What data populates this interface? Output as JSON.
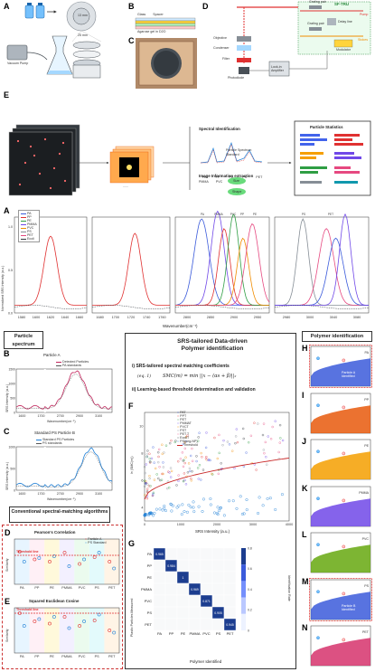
{
  "panelA_top": {
    "label": "A",
    "vacuum_pump": "Vacuum Pump",
    "d13": "13 mm",
    "d25": "25 mm"
  },
  "panelB_top": {
    "label": "B",
    "legend": [
      "Glass",
      "Spacer",
      "Agarose gel in D2O",
      "Nail Polish",
      "Al2O3 membrane"
    ]
  },
  "panelC_top": {
    "label": "C"
  },
  "panelD_top": {
    "label": "D",
    "title": "SF-TRU",
    "labels": [
      "Grating pair",
      "Grating pair",
      "Delay line",
      "Modulator",
      "Objective",
      "Condenser",
      "Filter",
      "Photodiode",
      "Lock-in Amplifier"
    ],
    "pump": "Pump",
    "stokes": "Stokes"
  },
  "panelE_top": {
    "label": "E",
    "spectral_identification": "Spectral Identification",
    "particle_spectrum": "Particle Spectrum",
    "standard": "Standard",
    "peaks": [
      "PA",
      "PP",
      "PE",
      "PS",
      "PET"
    ],
    "peaks2": [
      "PMMA",
      "PVC"
    ],
    "image_info": "Image Information extraction",
    "size": "Size",
    "shape": "Shape",
    "particle_statistics": "Particle Statistics",
    "dots": "......"
  },
  "spectra": {
    "label": "A",
    "ylabel": "Normalized SRS Intensity (a.u.)",
    "xlabel": "Wavenumber(cm⁻¹)",
    "legend": [
      "PA",
      "PP",
      "PE",
      "PMMA",
      "PVC",
      "PS",
      "PET",
      "Ecoli"
    ],
    "colors": [
      "#3b5bdb",
      "#e03131",
      "#2f9e44",
      "#7048e8",
      "#f08c00",
      "#868e96",
      "#e64980",
      "#343a40"
    ],
    "ticks1": [
      "1580",
      "1600",
      "1620",
      "1640",
      "1660"
    ],
    "ticks2": [
      "1680",
      "1700",
      "1720",
      "1740",
      "1760"
    ],
    "ticks3": [
      "2800",
      "2850",
      "2900",
      "2950"
    ],
    "ticks4": [
      "2980",
      "3000",
      "3040",
      "3080"
    ],
    "yticks": [
      "0.0",
      "0.5",
      "1.0"
    ],
    "peak_labels": [
      "PA",
      "PMMA",
      "PVC",
      "PP",
      "PE",
      "PS",
      "PET"
    ]
  },
  "particle_spectrum_box": "Particle spectrum",
  "particleA": {
    "label": "B",
    "title": "Particle A",
    "legend1": "Detected Particles",
    "legend2": "PA standards",
    "ylabel": "SRS Intensity (a.u.)",
    "xlabel": "Wavenumber(cm⁻¹)",
    "xticks": [
      "1600",
      "1700",
      "2700",
      "2900",
      "3100"
    ],
    "yticks": [
      "0",
      "500",
      "1000",
      "1500"
    ]
  },
  "particleB": {
    "label": "C",
    "title": "Standard PS Particle B",
    "legend1": "Standard PS Particles",
    "legend2": "PS standards",
    "ylabel": "SRS Intensity (a.u.)",
    "xlabel": "Wavenumber(cm⁻¹)",
    "xticks": [
      "1600",
      "1700",
      "2700",
      "2900",
      "3100"
    ],
    "yticks": [
      "0",
      "500",
      "1000"
    ]
  },
  "conventional_box": "Conventional spectral-matching algorithms",
  "pearson": {
    "label": "D",
    "title": "Pearson's Correlation",
    "legend": [
      "Particle A",
      "PS Standard"
    ],
    "threshold": "Threshold line",
    "categories": [
      "PA",
      "PP",
      "PE",
      "PMMA",
      "PVC",
      "PS",
      "PET"
    ],
    "ylabel": "Similarity"
  },
  "euclid": {
    "label": "E",
    "title": "Squared Euclidean Cosine",
    "threshold": "Threshold line",
    "categories": [
      "PA",
      "PP",
      "PE",
      "PMMA",
      "PVC",
      "PS",
      "PET"
    ],
    "ylabel": "Similarity"
  },
  "srs_box": {
    "title1": "SRS-tailored Data-driven",
    "title2": "Polymer identification",
    "item1": "i) SRS-tailored spectral matching coefficients",
    "eq_label": "(eq. 1)",
    "eq": "SMC(m) = min ||x − (αs + β)||₂",
    "item2": "ii) Learning-based threshold determination and validation"
  },
  "panelF": {
    "label": "F",
    "ylabel": "ln (SMC(m))",
    "xlabel": "SRS Intensity (a.u.)",
    "xticks": [
      "0",
      "1000",
      "2000",
      "3000",
      "4000"
    ],
    "yticks": [
      "4",
      "6",
      "8",
      "10"
    ],
    "legend": [
      "PAT",
      "PPT",
      "PET",
      "PMMAT",
      "PVCT",
      "PST",
      "PET T",
      "EcoliT",
      "PS(neg-NP)",
      "Threshold"
    ]
  },
  "panelG": {
    "label": "G",
    "ylabel": "Plastic Particles Measured",
    "xlabel": "Polymer Identified",
    "cbar_label": "Identification Rate",
    "rows": [
      "PA",
      "PP",
      "PE",
      "PMMA",
      "PVC",
      "PS",
      "PET"
    ],
    "cols": [
      "PA",
      "PP",
      "PE",
      "PMMA",
      "PVC",
      "PS",
      "PET"
    ],
    "diag": [
      "0.965",
      "0.984",
      "1",
      "0.969",
      "0.871",
      "0.905",
      "0.945"
    ],
    "cbar_ticks": [
      "0.8",
      "0.6",
      "0.4",
      "0.2",
      "0"
    ]
  },
  "polymer_box": "Polymer identification",
  "rightPanels": [
    {
      "label": "H",
      "name": "PA",
      "color": "#3b5bdb",
      "note": "Particle A Identified"
    },
    {
      "label": "I",
      "name": "PP",
      "color": "#e8590c",
      "note": ""
    },
    {
      "label": "J",
      "name": "PE",
      "color": "#f59f00",
      "note": ""
    },
    {
      "label": "K",
      "name": "PMMA",
      "color": "#7048e8",
      "note": ""
    },
    {
      "label": "L",
      "name": "PVC",
      "color": "#66a80f",
      "note": ""
    },
    {
      "label": "M",
      "name": "PS",
      "color": "#3b5bdb",
      "note": "Particle B Identified"
    },
    {
      "label": "N",
      "name": "PET",
      "color": "#d6336c",
      "note": ""
    }
  ]
}
